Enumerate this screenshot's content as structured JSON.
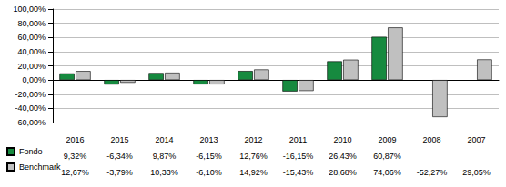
{
  "chart_data": {
    "type": "bar",
    "categories": [
      "2016",
      "2015",
      "2014",
      "2013",
      "2012",
      "2011",
      "2010",
      "2009",
      "2008",
      "2007"
    ],
    "series": [
      {
        "name": "Fondo",
        "color": "#168a3f",
        "values": [
          9.32,
          -6.34,
          9.87,
          -6.15,
          12.76,
          -16.15,
          26.43,
          60.87,
          null,
          null
        ],
        "value_labels": [
          "9,32%",
          "-6,34%",
          "9,87%",
          "-6,15%",
          "12,76%",
          "-16,15%",
          "26,43%",
          "60,87%",
          null,
          null
        ]
      },
      {
        "name": "Benchmark",
        "color": "#c0c0c0",
        "values": [
          12.67,
          -3.79,
          10.33,
          -6.1,
          14.92,
          -15.43,
          28.68,
          74.06,
          -52.27,
          29.05
        ],
        "value_labels": [
          "12,67%",
          "-3,79%",
          "10,33%",
          "-6,10%",
          "14,92%",
          "-15,43%",
          "28,68%",
          "74,06%",
          "-52,27%",
          "29,05%"
        ]
      }
    ],
    "ylim": [
      -60,
      100
    ],
    "yticks": [
      {
        "value": -60,
        "label": "-60,00%"
      },
      {
        "value": -40,
        "label": "-40,00%"
      },
      {
        "value": -20,
        "label": "-20,00%"
      },
      {
        "value": 0,
        "label": "0,00%"
      },
      {
        "value": 20,
        "label": "20,00%"
      },
      {
        "value": 40,
        "label": "40,00%"
      },
      {
        "value": 60,
        "label": "60,00%"
      },
      {
        "value": 80,
        "label": "80,00%"
      },
      {
        "value": 100,
        "label": "100,00%"
      }
    ],
    "grid": true,
    "legend": "bottom-left"
  }
}
